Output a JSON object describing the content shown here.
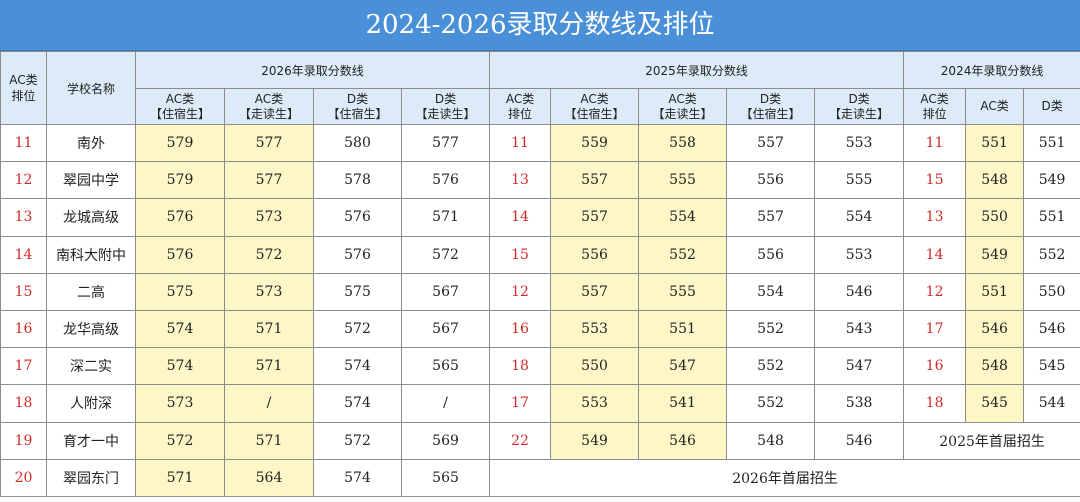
{
  "title": "2024-2026录取分数线及排位",
  "headers": {
    "ac_rank": "AC类排位",
    "school": "学校名称",
    "group2026": "2026年录取分数线",
    "group2025": "2025年录取分数线",
    "group2024": "2024年录取分数线",
    "sub2026": [
      "AC类【住宿生】",
      "AC类【走读生】",
      "D类【住宿生】",
      "D类【走读生】"
    ],
    "sub2025": [
      "AC类排位",
      "AC类【住宿生】",
      "AC类【走读生】",
      "D类【住宿生】",
      "D类【走读生】"
    ],
    "sub2024": [
      "AC类排位",
      "AC类",
      "D类"
    ]
  },
  "rows": [
    {
      "rank": "11",
      "school": "南外",
      "s26": [
        "579",
        "577",
        "580",
        "577"
      ],
      "r25": "11",
      "s25": [
        "559",
        "558",
        "557",
        "553"
      ],
      "r24": "11",
      "s24": [
        "551",
        "551"
      ]
    },
    {
      "rank": "12",
      "school": "翠园中学",
      "s26": [
        "579",
        "577",
        "578",
        "576"
      ],
      "r25": "13",
      "s25": [
        "557",
        "555",
        "556",
        "555"
      ],
      "r24": "15",
      "s24": [
        "548",
        "549"
      ]
    },
    {
      "rank": "13",
      "school": "龙城高级",
      "s26": [
        "576",
        "573",
        "576",
        "571"
      ],
      "r25": "14",
      "s25": [
        "557",
        "554",
        "557",
        "554"
      ],
      "r24": "13",
      "s24": [
        "550",
        "551"
      ]
    },
    {
      "rank": "14",
      "school": "南科大附中",
      "s26": [
        "576",
        "572",
        "576",
        "572"
      ],
      "r25": "15",
      "s25": [
        "556",
        "552",
        "556",
        "553"
      ],
      "r24": "14",
      "s24": [
        "549",
        "552"
      ]
    },
    {
      "rank": "15",
      "school": "二高",
      "s26": [
        "575",
        "573",
        "575",
        "567"
      ],
      "r25": "12",
      "s25": [
        "557",
        "555",
        "554",
        "546"
      ],
      "r24": "12",
      "s24": [
        "551",
        "550"
      ]
    },
    {
      "rank": "16",
      "school": "龙华高级",
      "s26": [
        "574",
        "571",
        "572",
        "567"
      ],
      "r25": "16",
      "s25": [
        "553",
        "551",
        "552",
        "543"
      ],
      "r24": "17",
      "s24": [
        "546",
        "546"
      ]
    },
    {
      "rank": "17",
      "school": "深二实",
      "s26": [
        "574",
        "571",
        "574",
        "565"
      ],
      "r25": "18",
      "s25": [
        "550",
        "547",
        "552",
        "547"
      ],
      "r24": "16",
      "s24": [
        "548",
        "545"
      ]
    },
    {
      "rank": "18",
      "school": "人附深",
      "s26": [
        "573",
        "/",
        "574",
        "/"
      ],
      "r25": "17",
      "s25": [
        "553",
        "541",
        "552",
        "538"
      ],
      "r24": "18",
      "s24": [
        "545",
        "544"
      ]
    },
    {
      "rank": "19",
      "school": "育才一中",
      "s26": [
        "572",
        "571",
        "572",
        "569"
      ],
      "r25": "22",
      "s25": [
        "549",
        "546",
        "548",
        "546"
      ],
      "note24": "2025年首届招生"
    },
    {
      "rank": "20",
      "school": "翠园东门",
      "s26": [
        "571",
        "564",
        "574",
        "565"
      ],
      "note25": "2026年首届招生"
    }
  ]
}
